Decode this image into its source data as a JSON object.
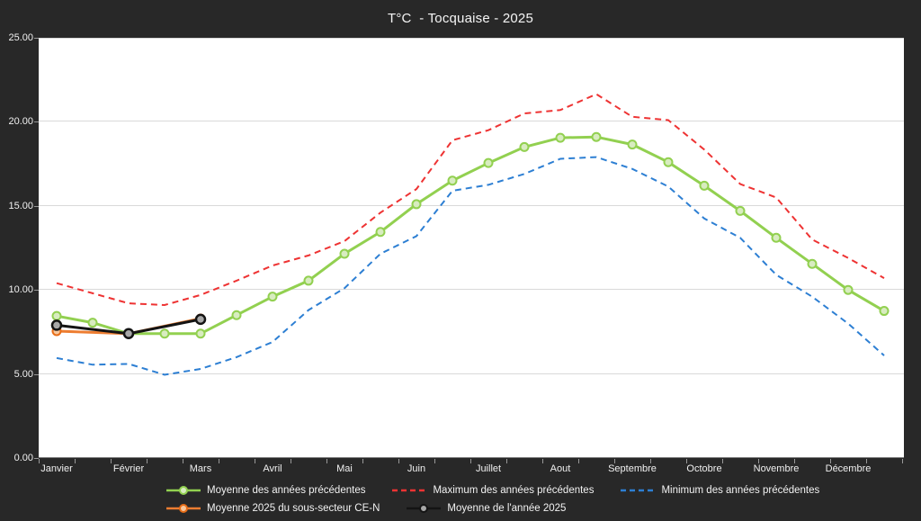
{
  "title": "T°C  - Tocquaise - 2025",
  "colors": {
    "background": "#282828",
    "plot_background": "#ffffff",
    "gridline": "#d9d9d9",
    "axis_text": "#f0f0f0",
    "green_series": "#92d050",
    "red_series": "#ee3333",
    "blue_series": "#2d7fd3",
    "orange_series": "#ed7d31",
    "black_series": "#141414"
  },
  "chart_data": {
    "type": "line",
    "title": "T°C  - Tocquaise - 2025",
    "x_categories": [
      "Janvier",
      "Février",
      "Mars",
      "Avril",
      "Mai",
      "Juin",
      "Juillet",
      "Aout",
      "Septembre",
      "Octobre",
      "Novembre",
      "Décembre"
    ],
    "points_per_month": 2,
    "ylim": [
      0,
      25
    ],
    "y_ticks": [
      {
        "value": 25,
        "label": "25.00"
      },
      {
        "value": 20,
        "label": "20.00"
      },
      {
        "value": 15,
        "label": "15.00"
      },
      {
        "value": 10,
        "label": "10.00"
      },
      {
        "value": 5,
        "label": "5.00"
      },
      {
        "value": 0,
        "label": "0.00"
      }
    ],
    "grid": "horizontal",
    "legend_position": "bottom",
    "series": [
      {
        "name": "Moyenne des années précédentes",
        "color": "#92d050",
        "dash": false,
        "width": 3,
        "marker": {
          "r": 4.5,
          "fill": "#d8ecc0",
          "stroke": "#92d050",
          "sw": 2
        },
        "cadence": "half-month",
        "values": [
          8.45,
          8.05,
          7.4,
          7.4,
          7.4,
          8.5,
          9.6,
          10.55,
          12.15,
          13.45,
          15.1,
          16.5,
          17.55,
          18.5,
          19.05,
          19.1,
          18.65,
          17.6,
          16.2,
          14.7,
          13.1,
          11.55,
          10.0,
          8.75
        ]
      },
      {
        "name": "Maximum des années précédentes",
        "color": "#ee3333",
        "dash": true,
        "width": 2,
        "marker": null,
        "cadence": "half-month",
        "values": [
          10.4,
          9.8,
          9.2,
          9.1,
          9.7,
          10.55,
          11.45,
          12.05,
          12.9,
          14.6,
          16.0,
          18.9,
          19.5,
          20.5,
          20.7,
          21.65,
          20.3,
          20.1,
          18.35,
          16.3,
          15.5,
          13.0,
          11.9,
          10.7
        ]
      },
      {
        "name": "Minimum des années précédentes",
        "color": "#2d7fd3",
        "dash": true,
        "width": 2,
        "marker": null,
        "cadence": "half-month",
        "values": [
          5.95,
          5.55,
          5.6,
          4.95,
          5.3,
          6.0,
          6.9,
          8.8,
          10.1,
          12.15,
          13.2,
          15.9,
          16.25,
          16.9,
          17.8,
          17.9,
          17.2,
          16.15,
          14.25,
          13.1,
          10.9,
          9.6,
          8.0,
          6.1
        ]
      },
      {
        "name": "Moyenne 2025 du sous-secteur CE-N",
        "color": "#ed7d31",
        "dash": false,
        "width": 3,
        "marker": {
          "r": 4.5,
          "fill": "#f6c79d",
          "stroke": "#e66c17",
          "sw": 2
        },
        "cadence": "month",
        "values": [
          7.55,
          7.4,
          8.3
        ]
      },
      {
        "name": "Moyenne de l'année 2025",
        "color": "#141414",
        "dash": false,
        "width": 3,
        "marker": {
          "r": 5,
          "fill": "#a8a8a8",
          "stroke": "#141414",
          "sw": 2.5
        },
        "cadence": "month",
        "values": [
          7.9,
          7.4,
          8.25
        ]
      }
    ]
  }
}
